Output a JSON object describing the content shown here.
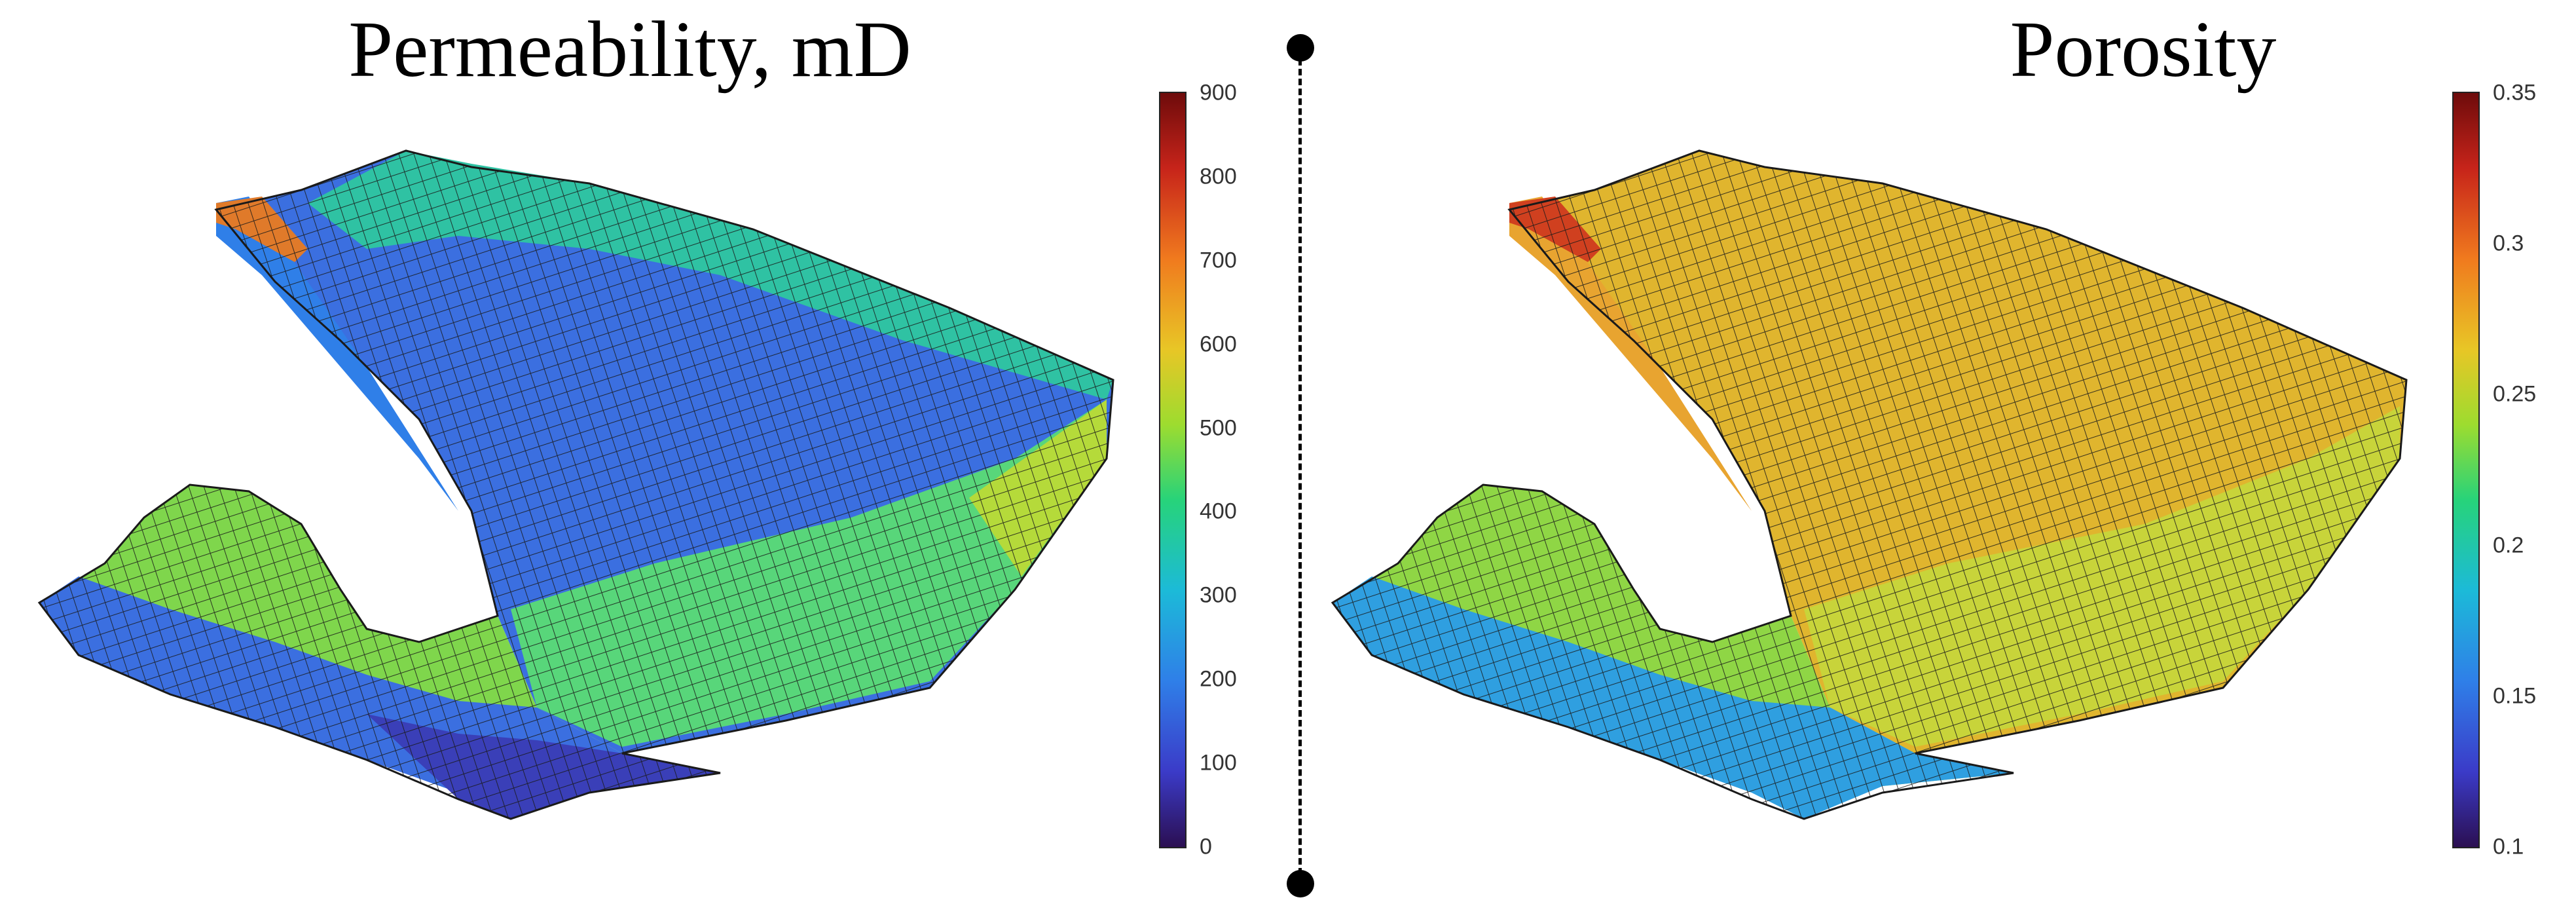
{
  "panels": {
    "left": {
      "title": "Permeability, mD",
      "colorbar": {
        "min": 0,
        "max": 900,
        "ticks": [
          "900",
          "800",
          "700",
          "600",
          "500",
          "400",
          "300",
          "200",
          "100",
          "0"
        ]
      }
    },
    "right": {
      "title": "Porosity",
      "colorbar": {
        "min": 0.1,
        "max": 0.35,
        "ticks": [
          "0.35",
          "0.3",
          "0.25",
          "0.2",
          "0.15",
          "0.1"
        ]
      }
    }
  },
  "colors": {
    "colormap": [
      "#2b0f52",
      "#3b3bc8",
      "#2f7fe8",
      "#1cbad8",
      "#27d37a",
      "#9ddc2f",
      "#e8c626",
      "#f07a1e",
      "#c7241a",
      "#6e0b0b"
    ],
    "mesh_line": "#1a1a1a",
    "divider": "#000000"
  }
}
